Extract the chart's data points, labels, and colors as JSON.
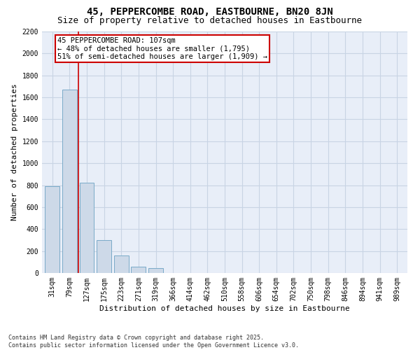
{
  "title": "45, PEPPERCOMBE ROAD, EASTBOURNE, BN20 8JN",
  "subtitle": "Size of property relative to detached houses in Eastbourne",
  "xlabel": "Distribution of detached houses by size in Eastbourne",
  "ylabel": "Number of detached properties",
  "categories": [
    "31sqm",
    "79sqm",
    "127sqm",
    "175sqm",
    "223sqm",
    "271sqm",
    "319sqm",
    "366sqm",
    "414sqm",
    "462sqm",
    "510sqm",
    "558sqm",
    "606sqm",
    "654sqm",
    "702sqm",
    "750sqm",
    "798sqm",
    "846sqm",
    "894sqm",
    "941sqm",
    "989sqm"
  ],
  "values": [
    790,
    1670,
    820,
    300,
    160,
    60,
    45,
    0,
    0,
    0,
    0,
    0,
    0,
    0,
    0,
    0,
    0,
    0,
    0,
    0,
    0
  ],
  "bar_color": "#cdd9e8",
  "bar_edge_color": "#7aaac8",
  "ylim": [
    0,
    2200
  ],
  "yticks": [
    0,
    200,
    400,
    600,
    800,
    1000,
    1200,
    1400,
    1600,
    1800,
    2000,
    2200
  ],
  "annotation_text": "45 PEPPERCOMBE ROAD: 107sqm\n← 48% of detached houses are smaller (1,795)\n51% of semi-detached houses are larger (1,909) →",
  "vline_x": 1.5,
  "annotation_box_color": "#ffffff",
  "annotation_box_edge_color": "#cc0000",
  "vline_color": "#cc0000",
  "grid_color": "#c8d4e4",
  "bg_color": "#e8eef8",
  "footnote": "Contains HM Land Registry data © Crown copyright and database right 2025.\nContains public sector information licensed under the Open Government Licence v3.0.",
  "title_fontsize": 10,
  "subtitle_fontsize": 9,
  "axis_label_fontsize": 8,
  "tick_fontsize": 7,
  "annotation_fontsize": 7.5,
  "footnote_fontsize": 6
}
